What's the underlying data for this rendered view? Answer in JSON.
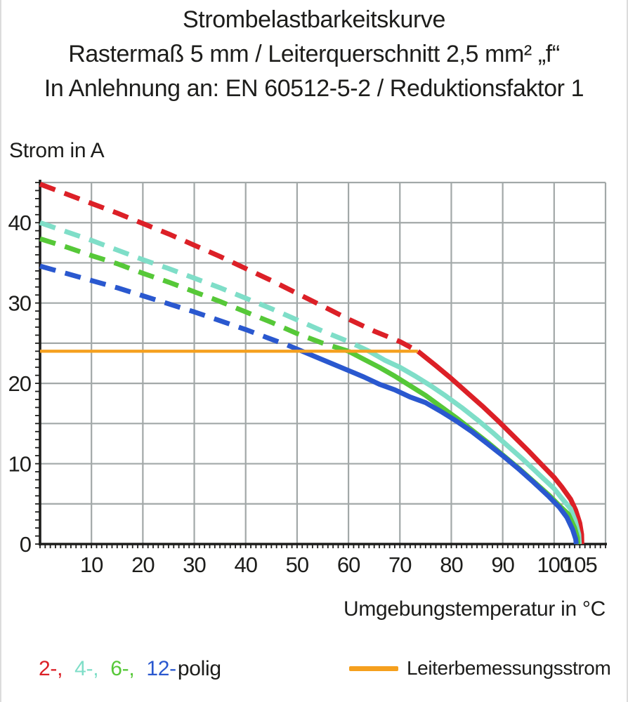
{
  "title": {
    "line1": "Strombelastbarkeitskurve",
    "line2": "Rastermaß 5 mm / Leiterquerschnitt 2,5 mm² „f“",
    "line3": "In Anlehnung an: EN 60512-5-2 / Reduktionsfaktor 1"
  },
  "axes": {
    "y_label": "Strom in A",
    "x_label": "Umgebungstemperatur in °C"
  },
  "legend": {
    "pole_items": [
      {
        "label": "2-,",
        "color": "#dc2027"
      },
      {
        "label": "4-,",
        "color": "#7fdec8"
      },
      {
        "label": "6-,",
        "color": "#56c838"
      },
      {
        "label": "12-",
        "color": "#2a58cf"
      },
      {
        "label": "polig",
        "color": "#1d1d1b"
      }
    ],
    "rated_current_label": "Leiterbemessungsstrom",
    "rated_current_color": "#f5a01e"
  },
  "chart_data": {
    "type": "line",
    "title": "Strombelastbarkeitskurve Rastermaß 5 mm / Leiterquerschnitt 2,5 mm² „f“ / EN 60512-5-2 / Reduktionsfaktor 1",
    "xlabel": "Umgebungstemperatur in °C",
    "ylabel": "Strom in A",
    "x_range": [
      0,
      110
    ],
    "y_range": [
      0,
      45
    ],
    "x_tick_labels": [
      10,
      20,
      30,
      40,
      50,
      60,
      70,
      80,
      90,
      100,
      105
    ],
    "y_tick_labels": [
      0,
      10,
      20,
      30,
      40
    ],
    "x_gridlines": [
      10,
      20,
      30,
      40,
      50,
      60,
      70,
      80,
      90,
      100
    ],
    "y_gridlines": [
      5,
      10,
      15,
      20,
      25,
      30,
      35,
      40
    ],
    "grid_on": true,
    "grid_color": "#a2a8a8",
    "axis_color": "#1d1d1b",
    "legend_position": "bottom",
    "rated_current": {
      "label": "Leiterbemessungsstrom",
      "value": 24,
      "x_start": 0,
      "x_end": 73.5,
      "color": "#f5a01e"
    },
    "series": [
      {
        "name": "2-polig",
        "color": "#dc2027",
        "dashed_points": [
          [
            0,
            44.8
          ],
          [
            5,
            43.6
          ],
          [
            10,
            42.4
          ],
          [
            15,
            41.2
          ],
          [
            20,
            39.9
          ],
          [
            25,
            38.6
          ],
          [
            30,
            37.2
          ],
          [
            35,
            35.8
          ],
          [
            40,
            34.3
          ],
          [
            45,
            32.8
          ],
          [
            50,
            31.2
          ],
          [
            55,
            29.6
          ],
          [
            60,
            28.0
          ],
          [
            65,
            26.5
          ],
          [
            70,
            25.2
          ],
          [
            73.5,
            24.0
          ]
        ],
        "solid_points": [
          [
            73.5,
            24.0
          ],
          [
            77,
            22.2
          ],
          [
            80,
            20.6
          ],
          [
            83,
            18.9
          ],
          [
            86,
            17.2
          ],
          [
            89,
            15.4
          ],
          [
            92,
            13.5
          ],
          [
            95,
            11.6
          ],
          [
            98,
            9.6
          ],
          [
            100,
            8.3
          ],
          [
            101.5,
            7.1
          ],
          [
            103.2,
            5.6
          ],
          [
            104.2,
            4.2
          ],
          [
            105,
            2.6
          ],
          [
            105.35,
            1.2
          ],
          [
            105.4,
            0
          ]
        ]
      },
      {
        "name": "4-polig",
        "color": "#7fdec8",
        "dashed_points": [
          [
            0,
            40.0
          ],
          [
            5,
            38.9
          ],
          [
            10,
            37.8
          ],
          [
            15,
            36.6
          ],
          [
            20,
            35.4
          ],
          [
            25,
            34.3
          ],
          [
            30,
            33.1
          ],
          [
            35,
            31.9
          ],
          [
            40,
            30.6
          ],
          [
            45,
            29.3
          ],
          [
            50,
            27.9
          ],
          [
            55,
            26.5
          ],
          [
            60,
            25.2
          ],
          [
            64,
            24.0
          ]
        ],
        "solid_points": [
          [
            64,
            24.0
          ],
          [
            67,
            22.9
          ],
          [
            70,
            22.0
          ],
          [
            73,
            20.9
          ],
          [
            76,
            19.7
          ],
          [
            79,
            18.4
          ],
          [
            82,
            17.0
          ],
          [
            85,
            15.5
          ],
          [
            88,
            13.9
          ],
          [
            91,
            12.2
          ],
          [
            94,
            10.5
          ],
          [
            97,
            8.7
          ],
          [
            100,
            6.9
          ],
          [
            101.5,
            5.7
          ],
          [
            103.2,
            4.4
          ],
          [
            104.1,
            2.9
          ],
          [
            104.8,
            1.2
          ],
          [
            104.9,
            0
          ]
        ]
      },
      {
        "name": "6-polig",
        "color": "#56c838",
        "dashed_points": [
          [
            0,
            38.0
          ],
          [
            5,
            37.0
          ],
          [
            10,
            35.9
          ],
          [
            15,
            34.9
          ],
          [
            20,
            33.7
          ],
          [
            25,
            32.6
          ],
          [
            30,
            31.4
          ],
          [
            35,
            30.2
          ],
          [
            40,
            28.9
          ],
          [
            45,
            27.6
          ],
          [
            50,
            26.2
          ],
          [
            55,
            25.0
          ],
          [
            60,
            24.0
          ]
        ],
        "solid_points": [
          [
            60,
            24.0
          ],
          [
            63,
            23.0
          ],
          [
            66,
            22.0
          ],
          [
            69,
            20.9
          ],
          [
            72,
            19.7
          ],
          [
            75,
            18.5
          ],
          [
            78,
            17.1
          ],
          [
            81,
            15.7
          ],
          [
            84,
            14.2
          ],
          [
            87,
            12.7
          ],
          [
            90,
            11.1
          ],
          [
            93,
            9.5
          ],
          [
            96,
            7.8
          ],
          [
            99,
            6.1
          ],
          [
            101,
            4.8
          ],
          [
            102.8,
            3.7
          ],
          [
            104,
            2.0
          ],
          [
            104.55,
            0.8
          ],
          [
            104.6,
            0
          ]
        ]
      },
      {
        "name": "12-polig",
        "color": "#2a58cf",
        "dashed_points": [
          [
            0,
            34.6
          ],
          [
            5,
            33.7
          ],
          [
            10,
            32.8
          ],
          [
            15,
            31.9
          ],
          [
            20,
            30.9
          ],
          [
            25,
            29.9
          ],
          [
            30,
            28.9
          ],
          [
            35,
            27.8
          ],
          [
            40,
            26.7
          ],
          [
            45,
            25.5
          ],
          [
            48,
            24.8
          ],
          [
            51,
            24.0
          ]
        ],
        "solid_points": [
          [
            51,
            24.0
          ],
          [
            54,
            23.2
          ],
          [
            57,
            22.4
          ],
          [
            60,
            21.6
          ],
          [
            63,
            20.8
          ],
          [
            66,
            19.9
          ],
          [
            69,
            19.2
          ],
          [
            72,
            18.3
          ],
          [
            75,
            17.6
          ],
          [
            78,
            16.5
          ],
          [
            81,
            15.3
          ],
          [
            84,
            14.0
          ],
          [
            87,
            12.5
          ],
          [
            90,
            11.0
          ],
          [
            93,
            9.4
          ],
          [
            96,
            7.7
          ],
          [
            99,
            5.9
          ],
          [
            101,
            4.6
          ],
          [
            102.5,
            3.3
          ],
          [
            103.6,
            1.8
          ],
          [
            104.2,
            0.6
          ],
          [
            104.3,
            0
          ]
        ]
      }
    ]
  }
}
